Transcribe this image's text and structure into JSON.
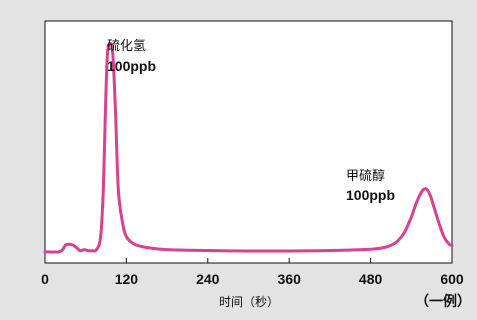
{
  "chart_data": {
    "type": "line",
    "xlabel": "时间（秒）",
    "ylabel": "",
    "xlim": [
      0,
      600
    ],
    "ylim": [
      0,
      100
    ],
    "x_ticks": [
      "0",
      "120",
      "240",
      "360",
      "480",
      "600"
    ],
    "grid": false,
    "legend": "none",
    "series": [
      {
        "color": "#d9408f",
        "x": [
          0,
          20,
          26,
          30,
          36,
          42,
          48,
          52,
          58,
          64,
          70,
          76,
          82,
          86,
          89,
          92,
          96,
          100,
          104,
          108,
          114,
          120,
          132,
          150,
          180,
          240,
          300,
          360,
          420,
          480,
          500,
          510,
          520,
          530,
          540,
          548,
          556,
          562,
          568,
          574,
          580,
          588,
          596,
          600
        ],
        "y": [
          1,
          1,
          2,
          4,
          4.5,
          4,
          2.5,
          1.5,
          2,
          1.5,
          1.5,
          2,
          8,
          30,
          65,
          92,
          97,
          92,
          65,
          30,
          15,
          8,
          4.5,
          3,
          2,
          1.6,
          1.4,
          1.4,
          1.6,
          2.2,
          3,
          4,
          6,
          10,
          17,
          24,
          29,
          30,
          27,
          21,
          15,
          8,
          4.5,
          4
        ]
      }
    ],
    "annotations": [
      {
        "label": "硫化氢",
        "value": "100ppb",
        "x": 95
      },
      {
        "label": "甲硫醇",
        "value": "100ppb",
        "x": 560
      }
    ]
  },
  "note": "（一例）"
}
